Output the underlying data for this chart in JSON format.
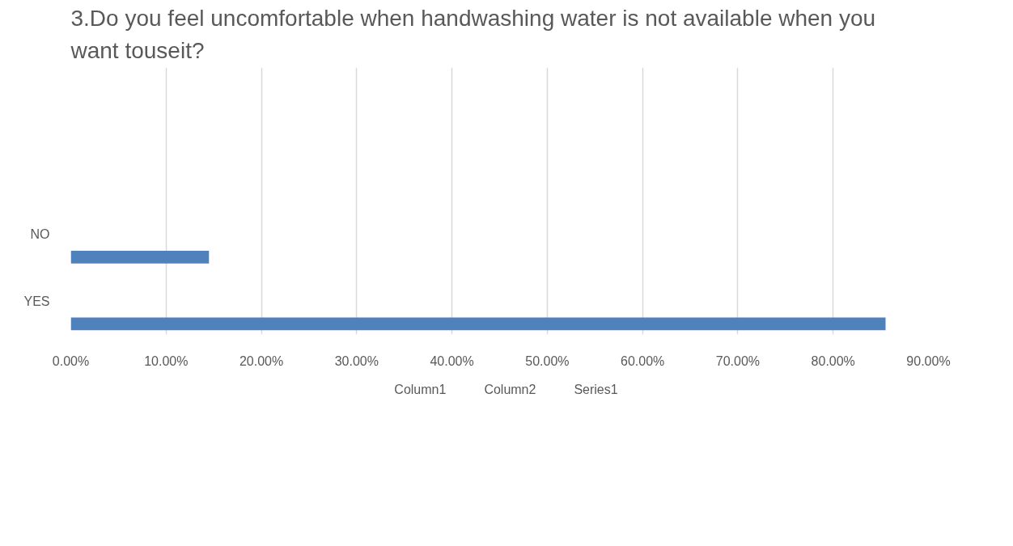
{
  "chart_data": {
    "type": "bar",
    "orientation": "horizontal",
    "title": "3.Do you feel uncomfortable when handwashing water is not available when you want touseit?",
    "categories": [
      "NO",
      "YES"
    ],
    "series": [
      {
        "name": "Column1",
        "values": [
          null,
          null
        ]
      },
      {
        "name": "Column2",
        "values": [
          null,
          null
        ]
      },
      {
        "name": "Series1",
        "color": "#4f81bd",
        "values": [
          14.5,
          85.5
        ]
      }
    ],
    "xlim": [
      0,
      90
    ],
    "xticks": [
      {
        "value": 0,
        "label": "0.00%"
      },
      {
        "value": 10,
        "label": "10.00%"
      },
      {
        "value": 20,
        "label": "20.00%"
      },
      {
        "value": 30,
        "label": "30.00%"
      },
      {
        "value": 40,
        "label": "40.00%"
      },
      {
        "value": 50,
        "label": "50.00%"
      },
      {
        "value": 60,
        "label": "60.00%"
      },
      {
        "value": 70,
        "label": "70.00%"
      },
      {
        "value": 80,
        "label": "80.00%"
      },
      {
        "value": 90,
        "label": "90.00%"
      }
    ],
    "grid": "x",
    "legend": "bottom"
  }
}
